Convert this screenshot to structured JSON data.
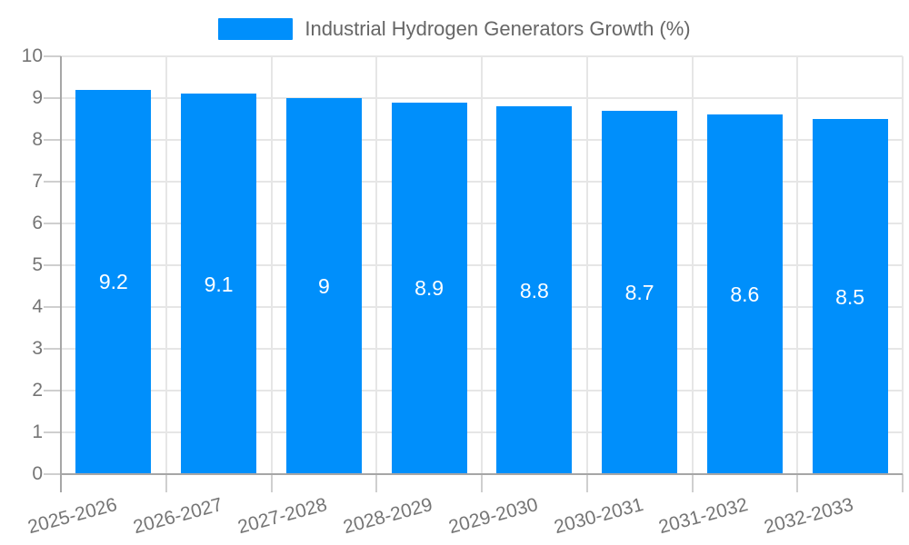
{
  "legend": {
    "label": "Industrial Hydrogen Generators Growth (%)"
  },
  "chart_data": {
    "type": "bar",
    "title": "Industrial Hydrogen Generators Growth (%)",
    "categories": [
      "2025-2026",
      "2026-2027",
      "2027-2028",
      "2028-2029",
      "2029-2030",
      "2030-2031",
      "2031-2032",
      "2032-2033"
    ],
    "values": [
      9.2,
      9.1,
      9,
      8.9,
      8.8,
      8.7,
      8.6,
      8.5
    ],
    "bar_labels": [
      "9.2",
      "9.1",
      "9",
      "8.9",
      "8.8",
      "8.7",
      "8.6",
      "8.5"
    ],
    "y_tick_labels": [
      "0",
      "1",
      "2",
      "3",
      "4",
      "5",
      "6",
      "7",
      "8",
      "9",
      "10"
    ],
    "y_ticks": [
      0,
      1,
      2,
      3,
      4,
      5,
      6,
      7,
      8,
      9,
      10
    ],
    "ylim": [
      0,
      10
    ],
    "xlabel": "",
    "ylabel": "",
    "grid": true,
    "legend_position": "top",
    "colors": {
      "bar": "#008FFB",
      "grid": "#e6e6e6",
      "axis_line": "#a6a6a6",
      "tick_mark": "#cfcfcf",
      "axis_text": "#757575",
      "legend_text": "#666666",
      "bar_label_text": "#ffffff",
      "background": "#ffffff"
    }
  }
}
